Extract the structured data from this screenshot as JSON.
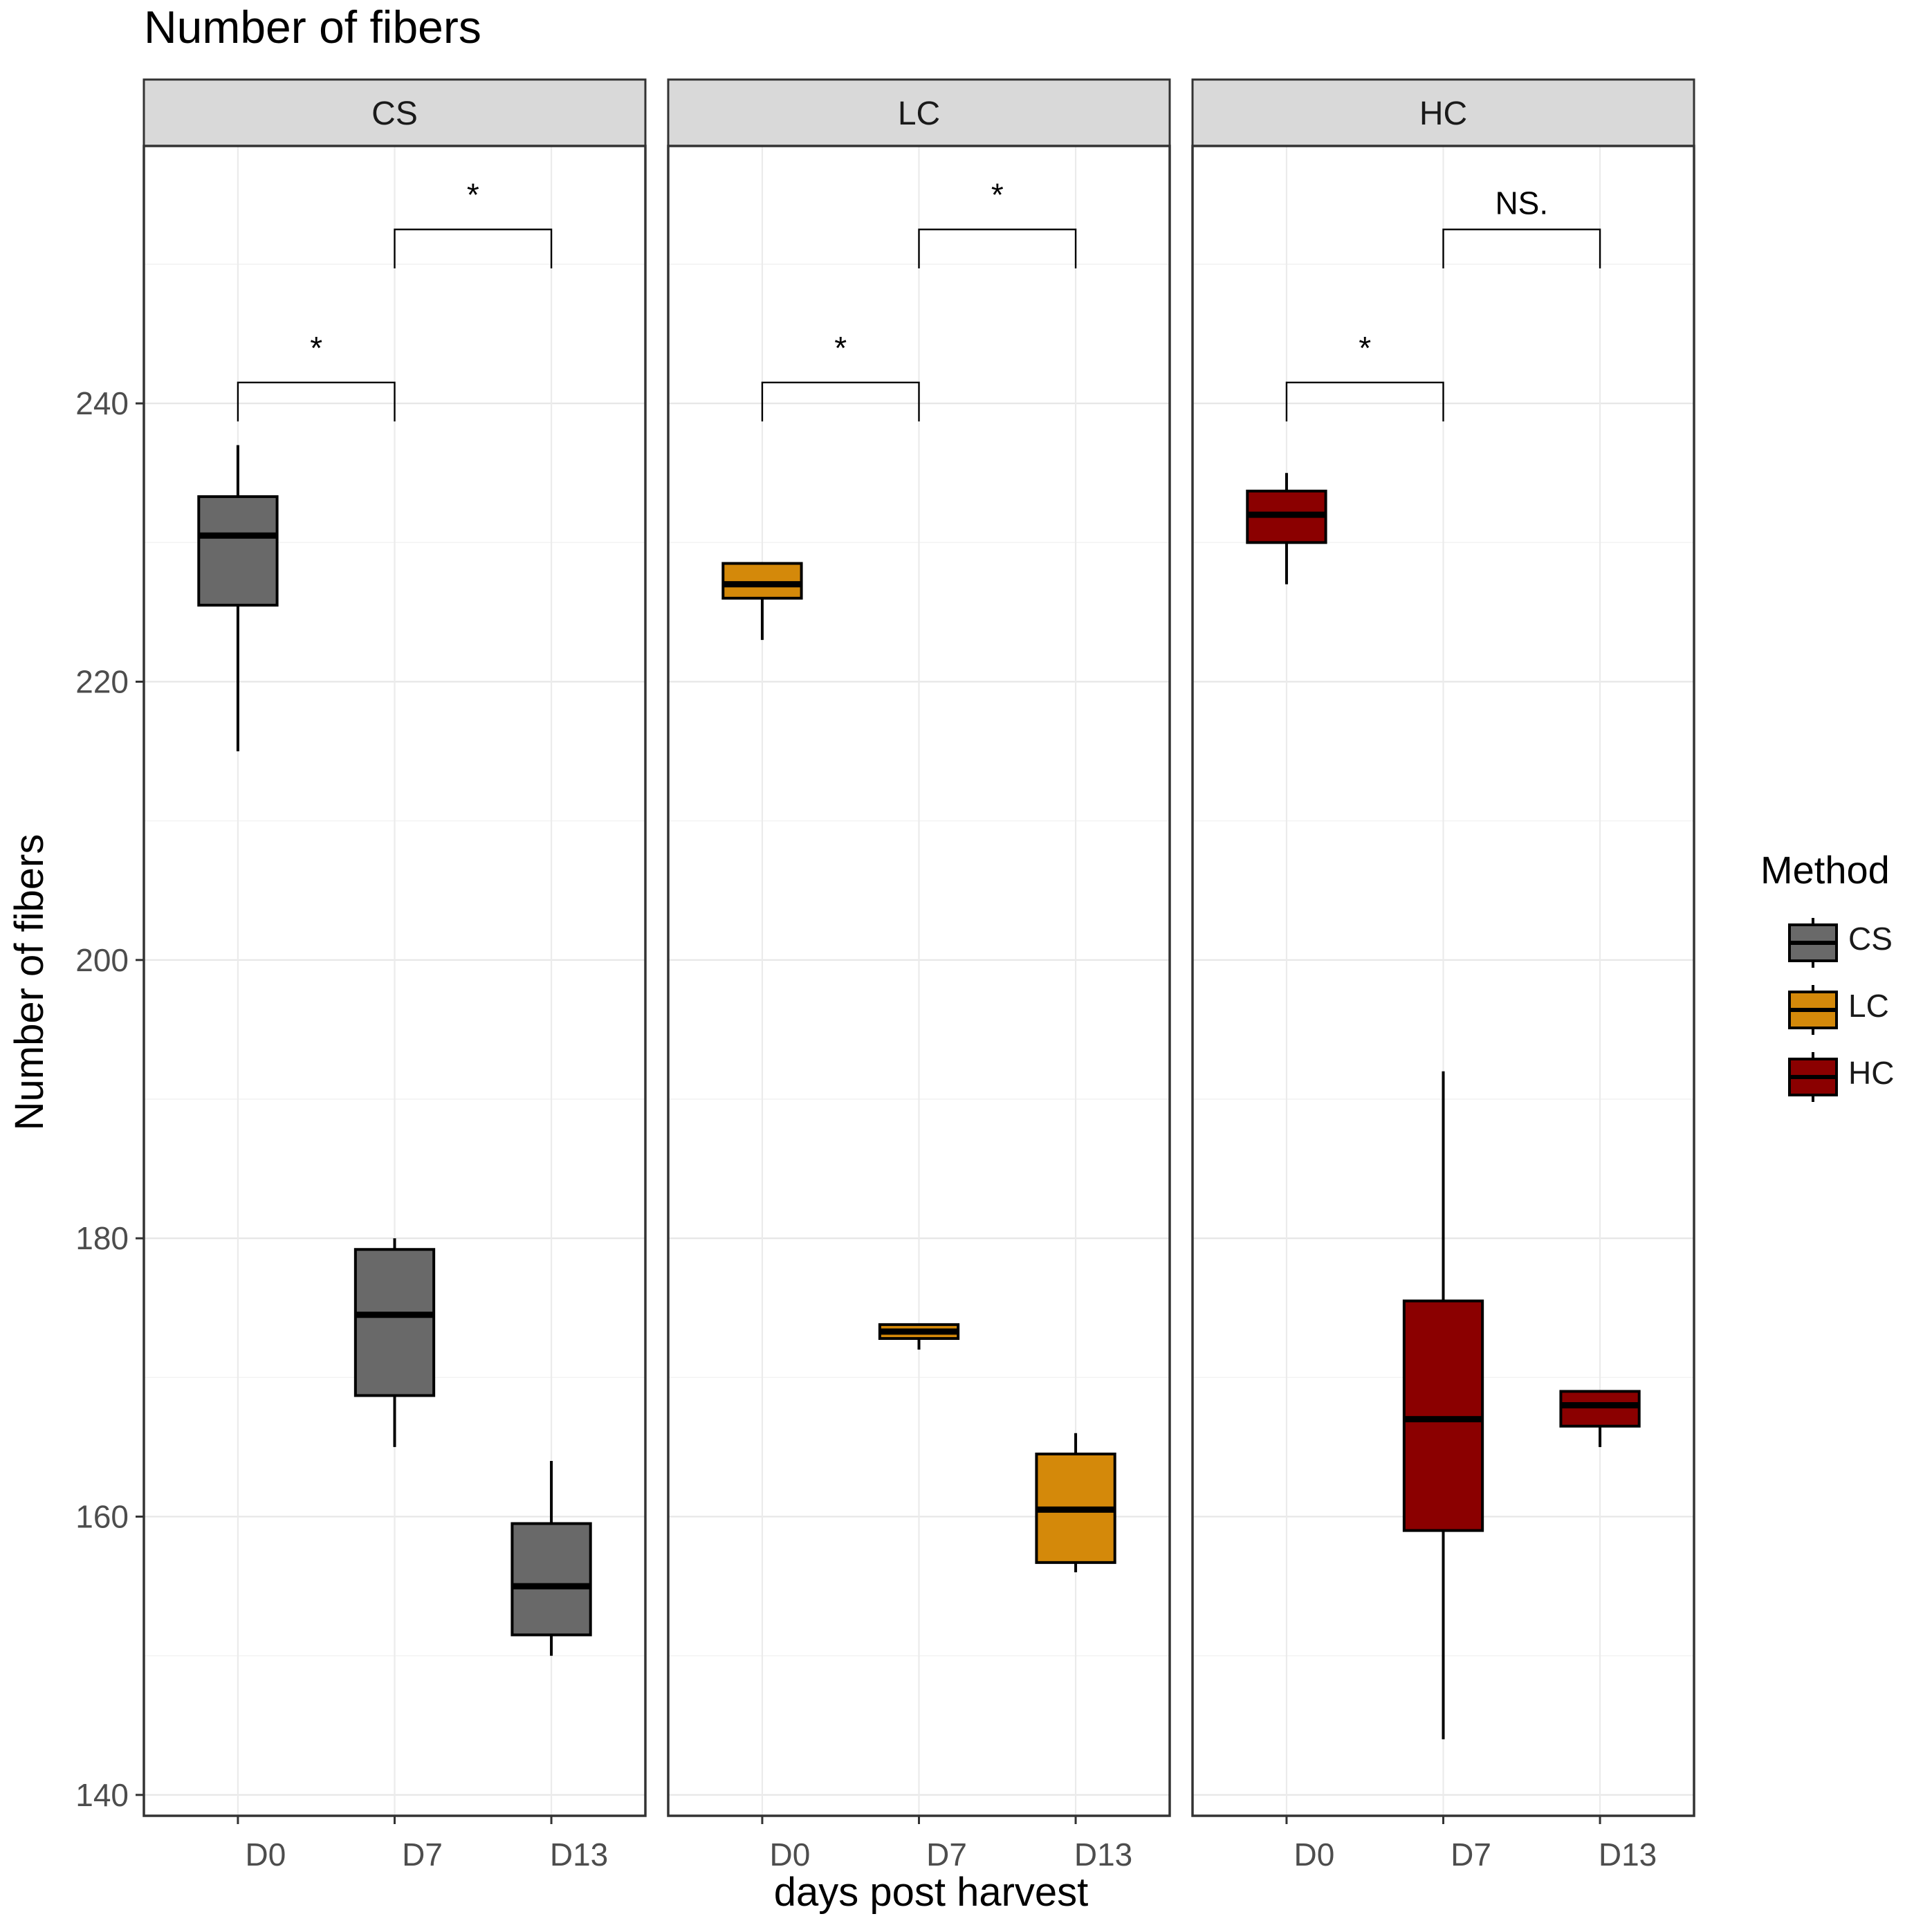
{
  "chart_data": {
    "type": "boxplot",
    "title": "Number of fibers",
    "xlabel": "days post harvest",
    "ylabel": "Number of fibers",
    "ylim": [
      138.5,
      258.5
    ],
    "yticks": [
      140,
      160,
      180,
      200,
      220,
      240
    ],
    "categories": [
      "D0",
      "D7",
      "D13"
    ],
    "legend": {
      "title": "Method",
      "position": "right",
      "entries": [
        "CS",
        "LC",
        "HC"
      ]
    },
    "panels": [
      {
        "name": "CS",
        "color": "#696969",
        "boxes": [
          {
            "category": "D0",
            "min": 215,
            "q1": 225.5,
            "median": 230.5,
            "q3": 233.3,
            "max": 237
          },
          {
            "category": "D7",
            "min": 165,
            "q1": 168.7,
            "median": 174.5,
            "q3": 179.2,
            "max": 180
          },
          {
            "category": "D13",
            "min": 150,
            "q1": 151.5,
            "median": 155,
            "q3": 159.5,
            "max": 164
          }
        ],
        "comparisons": [
          {
            "from": "D0",
            "to": "D7",
            "y": 241.5,
            "label": "*"
          },
          {
            "from": "D7",
            "to": "D13",
            "y": 252.5,
            "label": "*"
          }
        ]
      },
      {
        "name": "LC",
        "color": "#D4890A",
        "boxes": [
          {
            "category": "D0",
            "min": 223,
            "q1": 226,
            "median": 227,
            "q3": 228.5,
            "max": 228.5
          },
          {
            "category": "D7",
            "min": 172,
            "q1": 172.8,
            "median": 173.3,
            "q3": 173.8,
            "max": 173.8
          },
          {
            "category": "D13",
            "min": 156,
            "q1": 156.7,
            "median": 160.5,
            "q3": 164.5,
            "max": 166
          }
        ],
        "comparisons": [
          {
            "from": "D0",
            "to": "D7",
            "y": 241.5,
            "label": "*"
          },
          {
            "from": "D7",
            "to": "D13",
            "y": 252.5,
            "label": "*"
          }
        ]
      },
      {
        "name": "HC",
        "color": "#8B0000",
        "boxes": [
          {
            "category": "D0",
            "min": 227,
            "q1": 230,
            "median": 232,
            "q3": 233.7,
            "max": 235
          },
          {
            "category": "D7",
            "min": 144,
            "q1": 159,
            "median": 167,
            "q3": 175.5,
            "max": 192
          },
          {
            "category": "D13",
            "min": 165,
            "q1": 166.5,
            "median": 168,
            "q3": 169,
            "max": 169
          }
        ],
        "comparisons": [
          {
            "from": "D0",
            "to": "D7",
            "y": 241.5,
            "label": "*"
          },
          {
            "from": "D7",
            "to": "D13",
            "y": 252.5,
            "label": "NS."
          }
        ]
      }
    ]
  }
}
